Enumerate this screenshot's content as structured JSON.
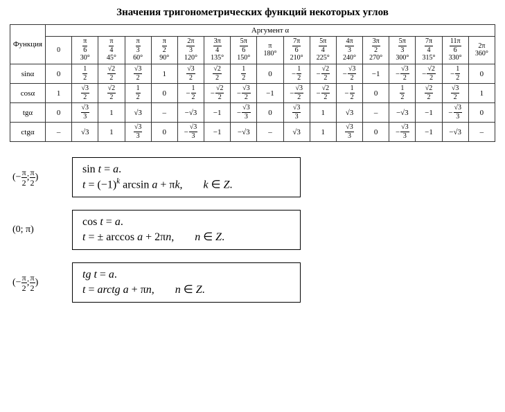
{
  "title": "Значения тригонометрических функций некоторых углов",
  "table": {
    "func_header": "Функция",
    "arg_header": "Аргумент α",
    "columns": [
      {
        "rad": "0",
        "deg": ""
      },
      {
        "rad_frac": {
          "n": "π",
          "d": "6"
        },
        "deg": "30°"
      },
      {
        "rad_frac": {
          "n": "π",
          "d": "4"
        },
        "deg": "45°"
      },
      {
        "rad_frac": {
          "n": "π",
          "d": "3"
        },
        "deg": "60°"
      },
      {
        "rad_frac": {
          "n": "π",
          "d": "2"
        },
        "deg": "90°"
      },
      {
        "rad_frac": {
          "n": "2π",
          "d": "3"
        },
        "deg": "120°"
      },
      {
        "rad_frac": {
          "n": "3π",
          "d": "4"
        },
        "deg": "135°"
      },
      {
        "rad_frac": {
          "n": "5π",
          "d": "6"
        },
        "deg": "150°"
      },
      {
        "rad": "π",
        "deg": "180°"
      },
      {
        "rad_frac": {
          "n": "7π",
          "d": "6"
        },
        "deg": "210°"
      },
      {
        "rad_frac": {
          "n": "5π",
          "d": "4"
        },
        "deg": "225°"
      },
      {
        "rad_frac": {
          "n": "4π",
          "d": "3"
        },
        "deg": "240°"
      },
      {
        "rad_frac": {
          "n": "3π",
          "d": "2"
        },
        "deg": "270°"
      },
      {
        "rad_frac": {
          "n": "5π",
          "d": "3"
        },
        "deg": "300°"
      },
      {
        "rad_frac": {
          "n": "7π",
          "d": "4"
        },
        "deg": "315°"
      },
      {
        "rad_frac": {
          "n": "11π",
          "d": "6"
        },
        "deg": "330°"
      },
      {
        "rad": "2π",
        "deg": "360°"
      }
    ],
    "rows": [
      {
        "label": "sinα",
        "cells": [
          {
            "plain": "0"
          },
          {
            "frac": {
              "n": "1",
              "d": "2"
            }
          },
          {
            "frac": {
              "n": "√2",
              "d": "2"
            }
          },
          {
            "frac": {
              "n": "√3",
              "d": "2"
            }
          },
          {
            "plain": "1"
          },
          {
            "frac": {
              "n": "√3",
              "d": "2"
            }
          },
          {
            "frac": {
              "n": "√2",
              "d": "2"
            }
          },
          {
            "frac": {
              "n": "1",
              "d": "2"
            }
          },
          {
            "plain": "0"
          },
          {
            "neg": true,
            "frac": {
              "n": "1",
              "d": "2"
            }
          },
          {
            "neg": true,
            "frac": {
              "n": "√2",
              "d": "2"
            }
          },
          {
            "neg": true,
            "frac": {
              "n": "√3",
              "d": "2"
            }
          },
          {
            "plain": "−1"
          },
          {
            "neg": true,
            "frac": {
              "n": "√3",
              "d": "2"
            }
          },
          {
            "neg": true,
            "frac": {
              "n": "√2",
              "d": "2"
            }
          },
          {
            "neg": true,
            "frac": {
              "n": "1",
              "d": "2"
            }
          },
          {
            "plain": "0"
          }
        ]
      },
      {
        "label": "cosα",
        "cells": [
          {
            "plain": "1"
          },
          {
            "frac": {
              "n": "√3",
              "d": "2"
            }
          },
          {
            "frac": {
              "n": "√2",
              "d": "2"
            }
          },
          {
            "frac": {
              "n": "1",
              "d": "2"
            }
          },
          {
            "plain": "0"
          },
          {
            "neg": true,
            "frac": {
              "n": "1",
              "d": "2"
            }
          },
          {
            "neg": true,
            "frac": {
              "n": "√2",
              "d": "2"
            }
          },
          {
            "neg": true,
            "frac": {
              "n": "√3",
              "d": "2"
            }
          },
          {
            "plain": "−1"
          },
          {
            "neg": true,
            "frac": {
              "n": "√3",
              "d": "2"
            }
          },
          {
            "neg": true,
            "frac": {
              "n": "√2",
              "d": "2"
            }
          },
          {
            "neg": true,
            "frac": {
              "n": "1",
              "d": "2"
            }
          },
          {
            "plain": "0"
          },
          {
            "frac": {
              "n": "1",
              "d": "2"
            }
          },
          {
            "frac": {
              "n": "√2",
              "d": "2"
            }
          },
          {
            "frac": {
              "n": "√3",
              "d": "2"
            }
          },
          {
            "plain": "1"
          }
        ]
      },
      {
        "label": "tgα",
        "cells": [
          {
            "plain": "0"
          },
          {
            "frac": {
              "n": "√3",
              "d": "3"
            }
          },
          {
            "plain": "1"
          },
          {
            "plain": "√3"
          },
          {
            "plain": "–"
          },
          {
            "plain": "−√3"
          },
          {
            "plain": "−1"
          },
          {
            "neg": true,
            "frac": {
              "n": "√3",
              "d": "3"
            }
          },
          {
            "plain": "0"
          },
          {
            "frac": {
              "n": "√3",
              "d": "3"
            }
          },
          {
            "plain": "1"
          },
          {
            "plain": "√3"
          },
          {
            "plain": "–"
          },
          {
            "plain": "−√3"
          },
          {
            "plain": "−1"
          },
          {
            "neg": true,
            "frac": {
              "n": "√3",
              "d": "3"
            }
          },
          {
            "plain": "0"
          }
        ]
      },
      {
        "label": "ctgα",
        "cells": [
          {
            "plain": "–"
          },
          {
            "plain": "√3"
          },
          {
            "plain": "1"
          },
          {
            "frac": {
              "n": "√3",
              "d": "3"
            }
          },
          {
            "plain": "0"
          },
          {
            "neg": true,
            "frac": {
              "n": "√3",
              "d": "3"
            }
          },
          {
            "plain": "−1"
          },
          {
            "plain": "−√3"
          },
          {
            "plain": "–"
          },
          {
            "plain": "√3"
          },
          {
            "plain": "1"
          },
          {
            "frac": {
              "n": "√3",
              "d": "3"
            }
          },
          {
            "plain": "0"
          },
          {
            "neg": true,
            "frac": {
              "n": "√3",
              "d": "3"
            }
          },
          {
            "plain": "−1"
          },
          {
            "plain": "−√3"
          },
          {
            "plain": "–"
          }
        ]
      }
    ]
  },
  "formulas": [
    {
      "interval_html": "(−<span class='fr'><span class='n'>π</span><span class='d'>2</span></span>;<span class='fr'><span class='n'>π</span><span class='d'>2</span></span>)",
      "lines": [
        "sin <span class='it'>t</span> = <span class='it'>a</span>.",
        "<span class='it'>t</span> = (−1)<span class='sup it'>k</span> arcsin <span class='it'>a</span> + π<span class='it'>k</span>,<span class='sp'></span><span class='it'>k</span> ∈ <span class='it'>Z</span>."
      ]
    },
    {
      "interval_html": "(0; π)",
      "lines": [
        "cos <span class='it'>t</span> = <span class='it'>a</span>.",
        "<span class='it'>t</span> = ± arccos <span class='it'>a</span> + 2π<span class='it'>n</span>,<span class='sp'></span><span class='it'>n</span> ∈ <span class='it'>Z</span>."
      ]
    },
    {
      "interval_html": "(−<span class='fr'><span class='n'>π</span><span class='d'>2</span></span>;<span class='fr'><span class='n'>π</span><span class='d'>2</span></span>)",
      "lines": [
        "<span class='it'>tg t</span> = <span class='it'>a</span>.",
        "<span class='it'>t</span> = <span class='it'>arctg a</span> + π<span class='it'>n</span>,<span class='sp'></span><span class='it'>n</span> ∈ <span class='it'>Z</span>."
      ]
    }
  ]
}
